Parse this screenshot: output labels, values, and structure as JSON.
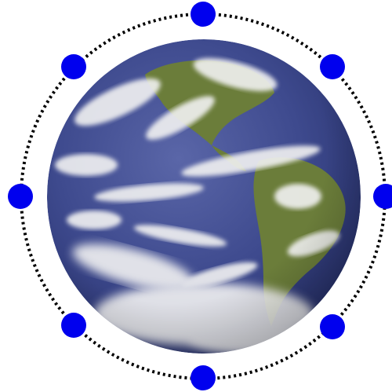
{
  "scene": {
    "subject": "earth-globe-satellite-view",
    "orbit_style": "dotted",
    "orbit_color": "#000000",
    "node_color": "#0000ee",
    "node_count": 8,
    "ocean_color": "#3e4a8e",
    "land_color": "#6b7d3a",
    "cloud_color": "#f2f2f2"
  }
}
